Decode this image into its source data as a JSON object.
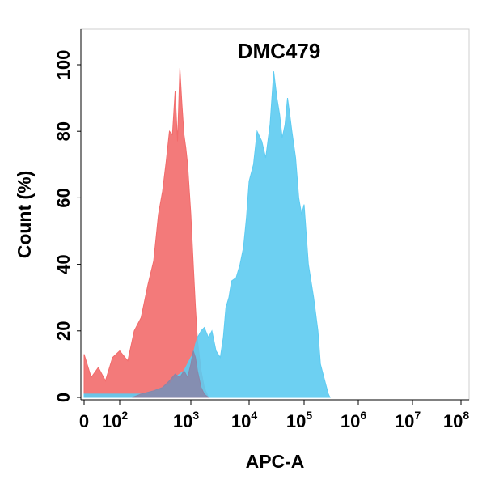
{
  "chart_data": {
    "type": "area",
    "title": "DMC479",
    "xlabel": "APC-A",
    "ylabel": "Count  (%)",
    "xscale": "biexponential",
    "ylim": [
      0,
      100
    ],
    "grid": false,
    "legend": "none",
    "x_tick_labels": [
      {
        "base": "0",
        "exp": ""
      },
      {
        "base": "10",
        "exp": "2"
      },
      {
        "base": "10",
        "exp": "3"
      },
      {
        "base": "10",
        "exp": "4"
      },
      {
        "base": "10",
        "exp": "5"
      },
      {
        "base": "10",
        "exp": "6"
      },
      {
        "base": "10",
        "exp": "7"
      },
      {
        "base": "10",
        "exp": "8"
      }
    ],
    "x_tick_values": [
      0,
      100,
      1000,
      10000,
      100000,
      1000000,
      10000000,
      100000000
    ],
    "y_ticks": [
      0,
      20,
      40,
      60,
      80,
      100
    ],
    "series": [
      {
        "color": "#f26b6b",
        "x": [
          0,
          20,
          40,
          60,
          80,
          100,
          130,
          160,
          200,
          250,
          300,
          350,
          400,
          450,
          500,
          550,
          600,
          650,
          700,
          750,
          800,
          850,
          900,
          1000,
          1100,
          1200,
          1300,
          1500,
          1700,
          2000
        ],
        "y": [
          13,
          6,
          9,
          5,
          12,
          14,
          11,
          20,
          24,
          34,
          41,
          55,
          62,
          71,
          80,
          79,
          92,
          77,
          99,
          88,
          79,
          75,
          70,
          55,
          40,
          27,
          17,
          8,
          3,
          0
        ]
      },
      {
        "color": "#5dcbf1",
        "x": [
          0,
          50,
          100,
          200,
          300,
          400,
          500,
          600,
          800,
          1000,
          1100,
          1200,
          1300,
          1500,
          1700,
          2000,
          2300,
          2700,
          3200,
          3600,
          4000,
          4500,
          5000,
          6000,
          7000,
          8000,
          9000,
          10000,
          12000,
          14000,
          17000,
          20000,
          24000,
          28000,
          32000,
          36000,
          40000,
          45000,
          50000,
          55000,
          60000,
          70000,
          80000,
          90000,
          100000,
          120000,
          150000,
          180000,
          200000,
          250000,
          280000,
          300000
        ],
        "y": [
          1,
          1,
          1,
          1,
          2,
          3,
          4,
          6,
          8,
          12,
          13,
          16,
          18,
          20,
          21,
          18,
          20,
          14,
          12,
          18,
          27,
          30,
          35,
          36,
          40,
          45,
          54,
          65,
          70,
          80,
          77,
          72,
          82,
          98,
          90,
          85,
          78,
          82,
          90,
          85,
          80,
          72,
          60,
          55,
          58,
          40,
          30,
          20,
          10,
          4,
          1,
          0
        ]
      },
      {
        "color": "#8a85a8",
        "x": [
          150,
          200,
          300,
          400,
          500,
          600,
          700,
          800,
          900,
          1000,
          1100,
          1200,
          1300,
          1500,
          1700,
          2000
        ],
        "y": [
          0,
          1,
          2,
          3,
          5,
          7,
          6,
          8,
          6,
          10,
          14,
          12,
          8,
          3,
          1,
          0
        ]
      }
    ]
  }
}
